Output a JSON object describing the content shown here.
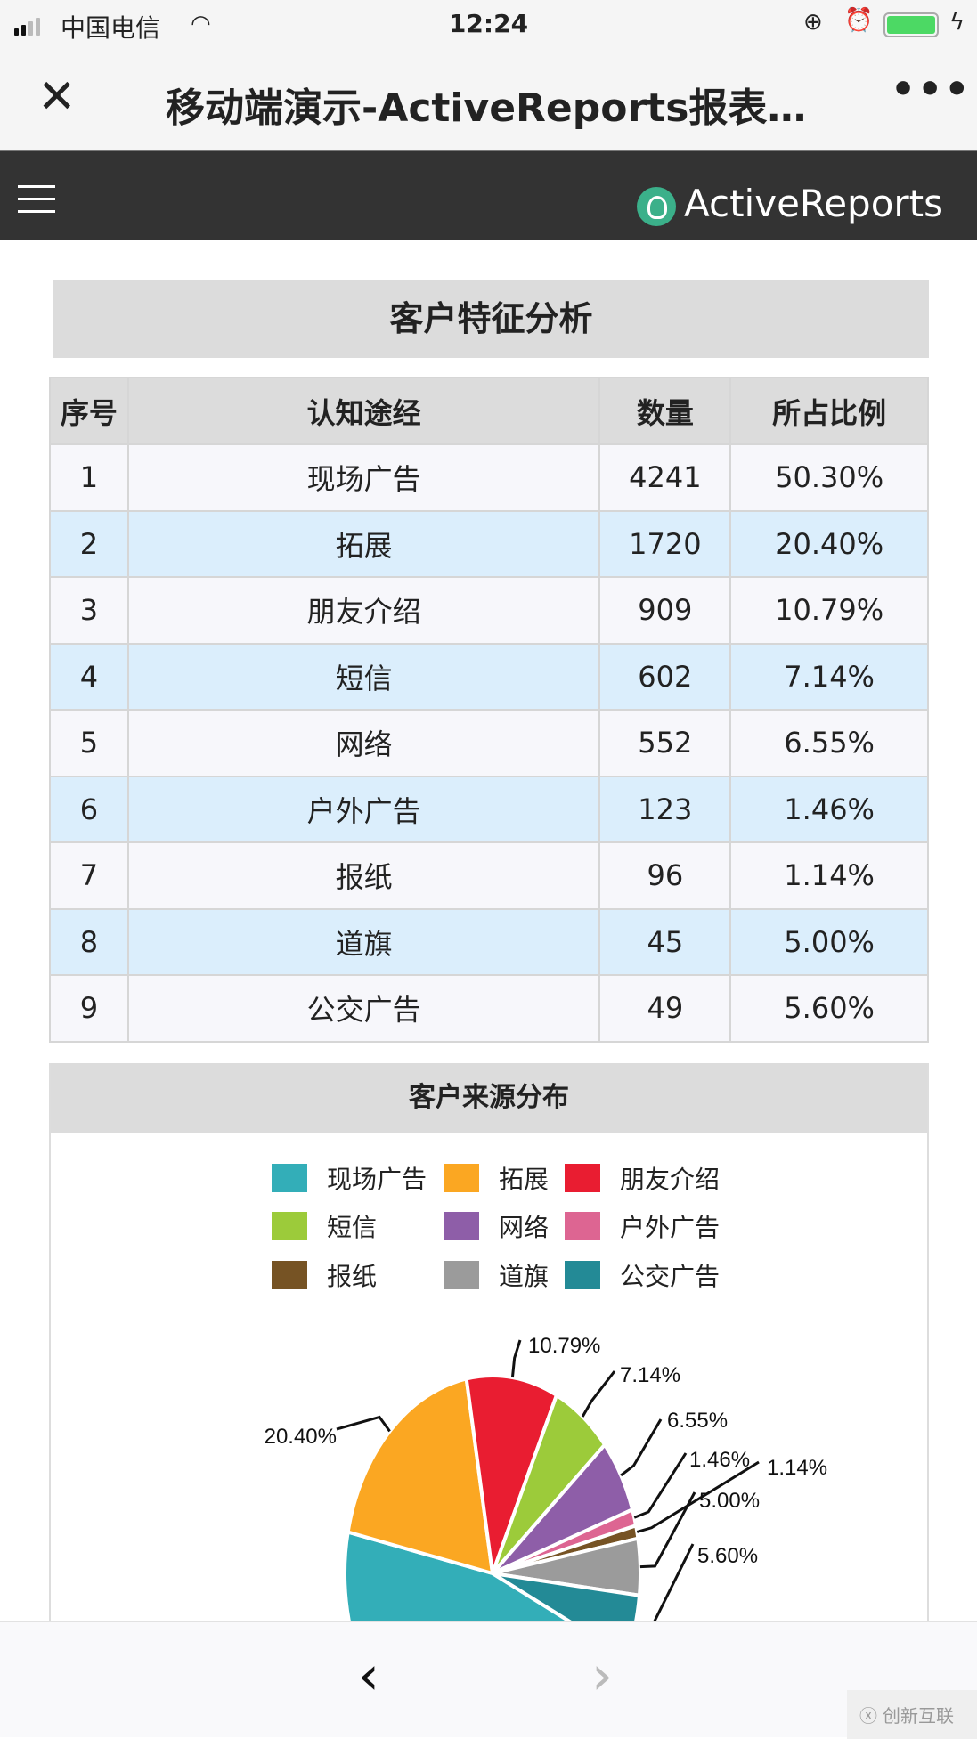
{
  "status_bar": {
    "carrier": "中国电信",
    "time": "12:24"
  },
  "navbar": {
    "title": "移动端演示-ActiveReports报表…",
    "close_icon": "close-icon",
    "more_icon": "more-icon"
  },
  "appbar": {
    "brand": "ActiveReports",
    "menu_icon": "hamburger-icon"
  },
  "report": {
    "title": "客户特征分析",
    "columns": [
      "序号",
      "认知途经",
      "数量",
      "所占比例"
    ],
    "rows": [
      [
        "1",
        "现场广告",
        "4241",
        "50.30%"
      ],
      [
        "2",
        "拓展",
        "1720",
        "20.40%"
      ],
      [
        "3",
        "朋友介绍",
        "909",
        "10.79%"
      ],
      [
        "4",
        "短信",
        "602",
        "7.14%"
      ],
      [
        "5",
        "网络",
        "552",
        "6.55%"
      ],
      [
        "6",
        "户外广告",
        "123",
        "1.46%"
      ],
      [
        "7",
        "报纸",
        "96",
        "1.14%"
      ],
      [
        "8",
        "道旗",
        "45",
        "5.00%"
      ],
      [
        "9",
        "公交广告",
        "49",
        "5.60%"
      ]
    ]
  },
  "chart_data": {
    "type": "pie",
    "title": "客户来源分布",
    "legend_position": "top",
    "categories": [
      "现场广告",
      "拓展",
      "朋友介绍",
      "短信",
      "网络",
      "户外广告",
      "报纸",
      "道旗",
      "公交广告"
    ],
    "values": [
      50.3,
      20.4,
      10.79,
      7.14,
      6.55,
      1.46,
      1.14,
      5.0,
      5.6
    ],
    "labels": [
      "",
      "20.40%",
      "10.79%",
      "7.14%",
      "6.55%",
      "1.46%",
      "1.14%",
      "5.00%",
      "5.60%"
    ],
    "colors": [
      "#33aeb8",
      "#fba722",
      "#e91d31",
      "#9ccb3a",
      "#8e5ea8",
      "#dd6592",
      "#765324",
      "#9b9b9b",
      "#238a96"
    ]
  },
  "bottom_bar": {
    "back": "‹",
    "forward": "›",
    "watermark": "创新互联"
  }
}
